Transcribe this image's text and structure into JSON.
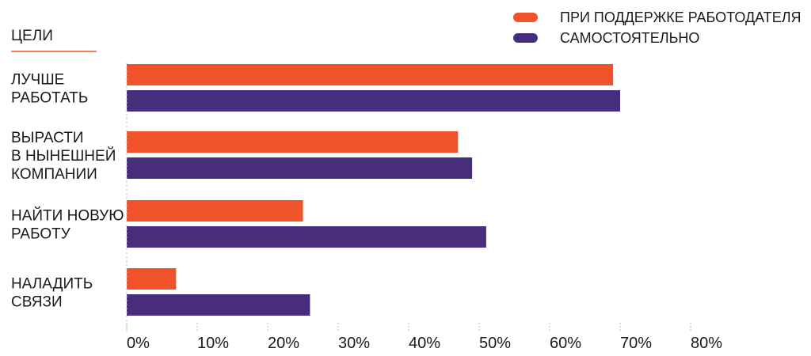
{
  "colors": {
    "employer": "#f0522a",
    "self": "#472d7c",
    "axis": "#bdbdbd",
    "heading_underline": "#f0522a"
  },
  "chart_data": {
    "type": "bar",
    "orientation": "horizontal",
    "title": "ЦЕЛИ",
    "categories": [
      [
        "ЛУЧШЕ",
        "РАБОТАТЬ"
      ],
      [
        "ВЫРАСТИ",
        "В НЫНЕШНЕЙ",
        "КОМПАНИИ"
      ],
      [
        "НАЙТИ НОВУЮ",
        "РАБОТУ"
      ],
      [
        "НАЛАДИТЬ",
        "СВЯЗИ"
      ]
    ],
    "series": [
      {
        "name": "ПРИ ПОДДЕРЖКЕ РАБОТОДАТЕЛЯ",
        "values": [
          69,
          47,
          25,
          7
        ]
      },
      {
        "name": "САМОСТОЯТЕЛЬНО",
        "values": [
          70,
          49,
          51,
          26
        ]
      }
    ],
    "xlim": [
      0,
      80
    ],
    "xticks": [
      0,
      10,
      20,
      30,
      40,
      50,
      60,
      70,
      80
    ],
    "tick_labels": [
      "0%",
      "10%",
      "20%",
      "30%",
      "40%",
      "50%",
      "60%",
      "70%",
      "80%"
    ],
    "legend_position": "top-right",
    "grid": false
  }
}
